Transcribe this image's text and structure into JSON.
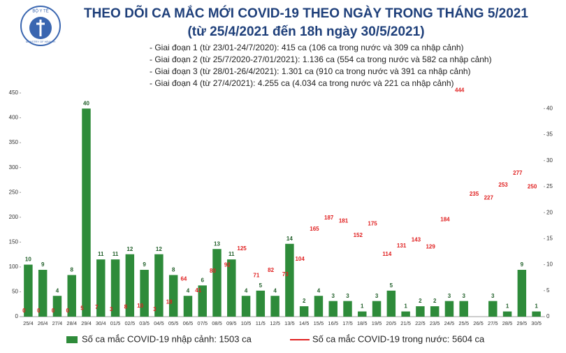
{
  "logo": {
    "top": "BỘ Y TẾ",
    "bottom": "MINISTRY OF HEALTH"
  },
  "chart_data": {
    "type": "bar-line",
    "title": "THEO DÕI CA MẮC MỚI COVID-19 THEO NGÀY TRONG THÁNG 5/2021",
    "subtitle": "(từ 25/4/2021 đến 18h ngày 30/5/2021)",
    "annotations": [
      "- Giai đoạn 1 (từ 23/01-24/7/2020): 415 ca (106 ca trong nước và 309 ca nhập cảnh)",
      "- Giai đoạn 2 (từ 25/7/2020-27/01/2021): 1.136 ca (554 ca trong nước và 582 ca nhập cảnh)",
      "- Giai đoạn 3 (từ 28/01-26/4/2021): 1.301 ca (910 ca trong nước và 391 ca nhập cảnh)",
      "- Giai đoạn 4 (từ 27/4/2021): 4.255 ca (4.034 ca trong nước và 221 ca nhập cảnh)"
    ],
    "categories": [
      "25/4",
      "26/4",
      "27/4",
      "28/4",
      "29/4",
      "30/4",
      "01/5",
      "02/5",
      "03/5",
      "04/5",
      "05/5",
      "06/5",
      "07/5",
      "08/5",
      "09/5",
      "10/5",
      "11/5",
      "12/5",
      "13/5",
      "14/5",
      "15/5",
      "16/5",
      "17/5",
      "18/5",
      "19/5",
      "20/5",
      "21/5",
      "22/5",
      "23/5",
      "24/5",
      "25/5",
      "26/5",
      "27/5",
      "28/5",
      "29/5",
      "30/5"
    ],
    "series": [
      {
        "name": "Số ca mắc COVID-19 nhập cảnh: 1503 ca",
        "kind": "bar",
        "axis": "y2",
        "color": "#2e8b3a",
        "values": [
          10,
          9,
          4,
          8,
          40,
          11,
          11,
          12,
          9,
          12,
          8,
          4,
          6,
          13,
          11,
          4,
          5,
          4,
          14,
          2,
          4,
          3,
          3,
          1,
          3,
          5,
          1,
          2,
          2,
          3,
          3,
          null,
          3,
          1,
          9,
          1
        ]
      },
      {
        "name": "Số ca mắc COVID-19 trong nước: 5604 ca",
        "kind": "line",
        "axis": "y",
        "color": "#e02020",
        "values": [
          0,
          0,
          0,
          0,
          5,
          7,
          3,
          8,
          10,
          3,
          18,
          64,
          41,
          80,
          92,
          125,
          71,
          82,
          73,
          104,
          165,
          187,
          181,
          152,
          175,
          114,
          131,
          143,
          129,
          184,
          444,
          235,
          227,
          253,
          277,
          250
        ]
      }
    ],
    "ylim": [
      0,
      450
    ],
    "yticks": [
      0,
      50,
      100,
      150,
      200,
      250,
      300,
      350,
      400,
      450
    ],
    "y2lim": [
      0,
      43
    ],
    "y2ticks": [
      0,
      5,
      10,
      15,
      20,
      25,
      30,
      35,
      40
    ]
  }
}
